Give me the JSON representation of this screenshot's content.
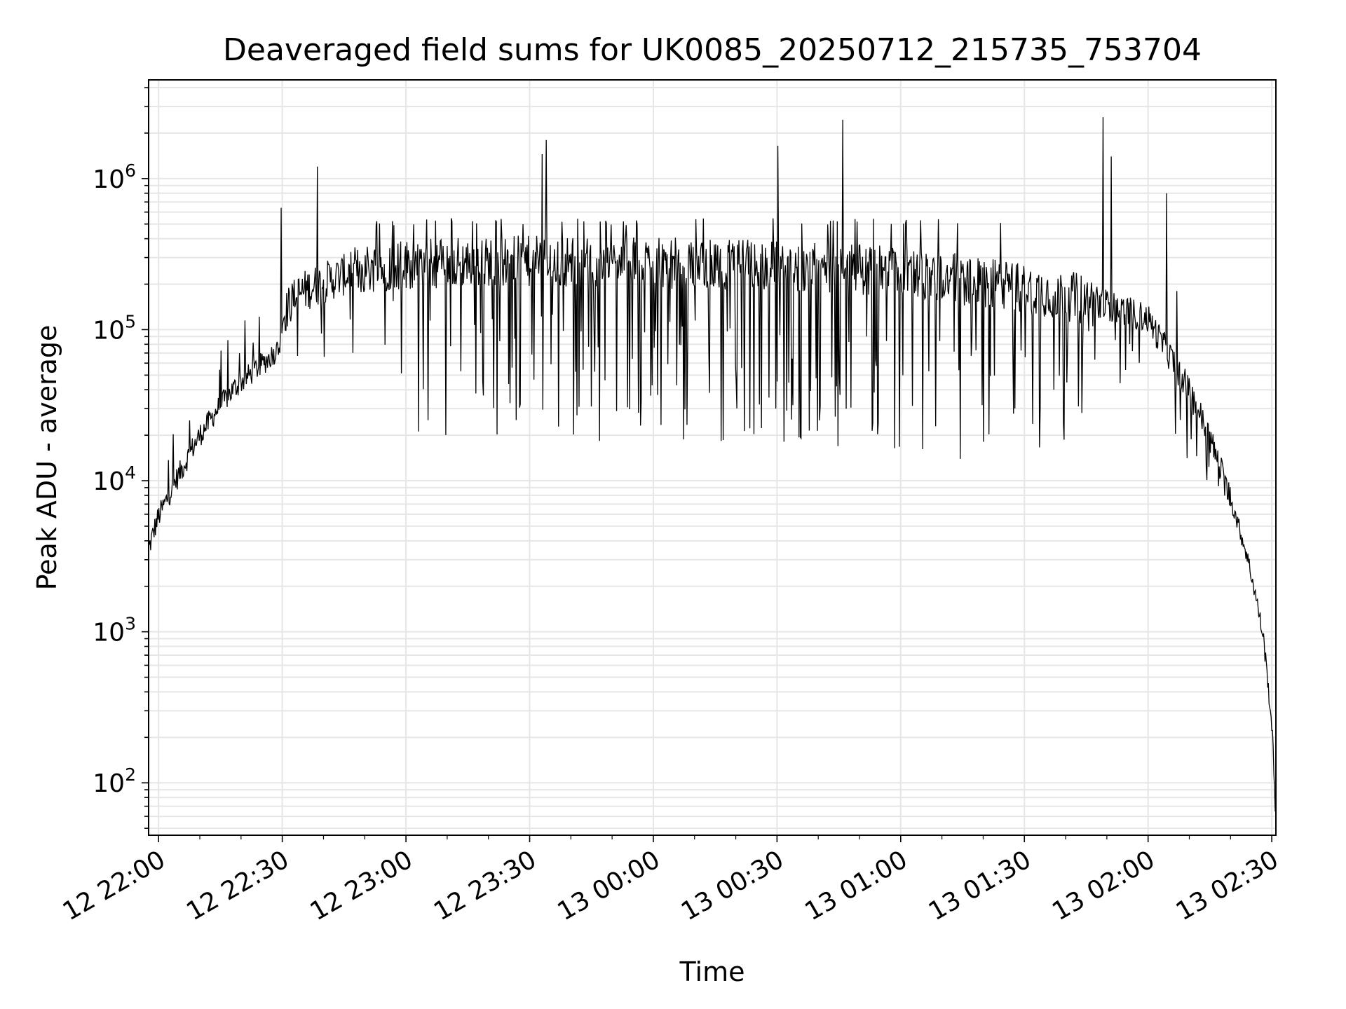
{
  "chart_data": {
    "type": "line",
    "title": "Deaveraged field sums for UK0085_20250712_215735_753704",
    "xlabel": "Time",
    "ylabel": "Peak ADU - average",
    "yscale": "log",
    "grid": "on",
    "legend": "none",
    "line_color": "#000000",
    "grid_color": "#e6e6e6",
    "xlim": [
      "12 21:57:35",
      "13 02:31:00"
    ],
    "ylim": [
      45,
      4500000
    ],
    "x_ticks": [
      "12 22:00",
      "12 22:30",
      "12 23:00",
      "12 23:30",
      "13 00:00",
      "13 00:30",
      "13 01:00",
      "13 01:30",
      "13 02:00",
      "13 02:30"
    ],
    "y_ticks": [
      {
        "base": "10",
        "exp": "2",
        "value": 100
      },
      {
        "base": "10",
        "exp": "3",
        "value": 1000
      },
      {
        "base": "10",
        "exp": "4",
        "value": 10000
      },
      {
        "base": "10",
        "exp": "5",
        "value": 100000
      },
      {
        "base": "10",
        "exp": "6",
        "value": 1000000
      }
    ],
    "series": [
      {
        "x": [
          "12 21:57:35",
          "12 21:59:00",
          "12 22:00:00",
          "12 22:02:00",
          "12 22:04:00",
          "12 22:06:00",
          "12 22:08:00",
          "12 22:10:00",
          "12 22:12:00",
          "12 22:14:00",
          "12 22:16:00",
          "12 22:18:00",
          "12 22:20:00",
          "12 22:22:00",
          "12 22:24:00",
          "12 22:26:00",
          "12 22:28:00",
          "12 22:29:30",
          "12 22:30:00",
          "12 22:32:00",
          "12 22:34:00",
          "12 22:36:00",
          "12 22:38:00",
          "12 22:40:00",
          "12 22:42:00",
          "12 22:44:00",
          "12 22:46:00",
          "12 22:48:00",
          "12 22:50:00",
          "12 22:52:00",
          "12 22:54:00",
          "12 22:56:00",
          "12 22:58:00",
          "12 23:00:00",
          "12 23:05:00",
          "12 23:10:00",
          "12 23:15:00",
          "12 23:20:00",
          "12 23:25:00",
          "12 23:30:00",
          "12 23:35:00",
          "12 23:40:00",
          "12 23:45:00",
          "12 23:50:00",
          "12 23:55:00",
          "13 00:00:00",
          "13 00:05:00",
          "13 00:10:00",
          "13 00:15:00",
          "13 00:20:00",
          "13 00:25:00",
          "13 00:30:00",
          "13 00:35:00",
          "13 00:40:00",
          "13 00:45:00",
          "13 00:50:00",
          "13 00:55:00",
          "13 01:00:00",
          "13 01:05:00",
          "13 01:10:00",
          "13 01:15:00",
          "13 01:20:00",
          "13 01:25:00",
          "13 01:30:00",
          "13 01:35:00",
          "13 01:40:00",
          "13 01:45:00",
          "13 01:50:00",
          "13 01:55:00",
          "13 02:00:00",
          "13 02:03:00",
          "13 02:06:00",
          "13 02:09:00",
          "13 02:12:00",
          "13 02:15:00",
          "13 02:18:00",
          "13 02:21:00",
          "13 02:24:00",
          "13 02:26:00",
          "13 02:28:00",
          "13 02:29:00",
          "13 02:30:00",
          "13 02:30:30",
          "13 02:30:50"
        ],
        "y": [
          3500,
          4800,
          5800,
          7500,
          9800,
          12500,
          16000,
          20000,
          24000,
          29000,
          34000,
          40000,
          45000,
          50000,
          56000,
          62000,
          70000,
          78000,
          120000,
          150000,
          170000,
          185000,
          195000,
          205000,
          215000,
          225000,
          235000,
          245000,
          252000,
          258000,
          262000,
          265000,
          268000,
          270000,
          275000,
          278000,
          280000,
          282000,
          283000,
          283000,
          283000,
          283000,
          283000,
          282000,
          280000,
          278000,
          276000,
          274000,
          272000,
          270000,
          268000,
          265000,
          262000,
          259000,
          255000,
          250000,
          244000,
          238000,
          230000,
          222000,
          214000,
          205000,
          196000,
          187000,
          178000,
          168000,
          157000,
          145000,
          132000,
          118000,
          85000,
          62000,
          44000,
          30000,
          19000,
          11000,
          6200,
          3200,
          1800,
          900,
          480,
          240,
          130,
          72
        ]
      }
    ],
    "spikes": [
      {
        "x": "12 22:29:45",
        "y": 640000
      },
      {
        "x": "12 22:38:30",
        "y": 1200000
      },
      {
        "x": "12 23:33:00",
        "y": 1450000
      },
      {
        "x": "12 23:34:00",
        "y": 1800000
      },
      {
        "x": "13 00:30:10",
        "y": 1650000
      },
      {
        "x": "13 00:46:00",
        "y": 2450000
      },
      {
        "x": "13 01:49:00",
        "y": 2550000
      },
      {
        "x": "13 01:51:00",
        "y": 1400000
      },
      {
        "x": "13 02:04:30",
        "y": 800000
      },
      {
        "x": "13 02:07:00",
        "y": 180000
      }
    ]
  }
}
